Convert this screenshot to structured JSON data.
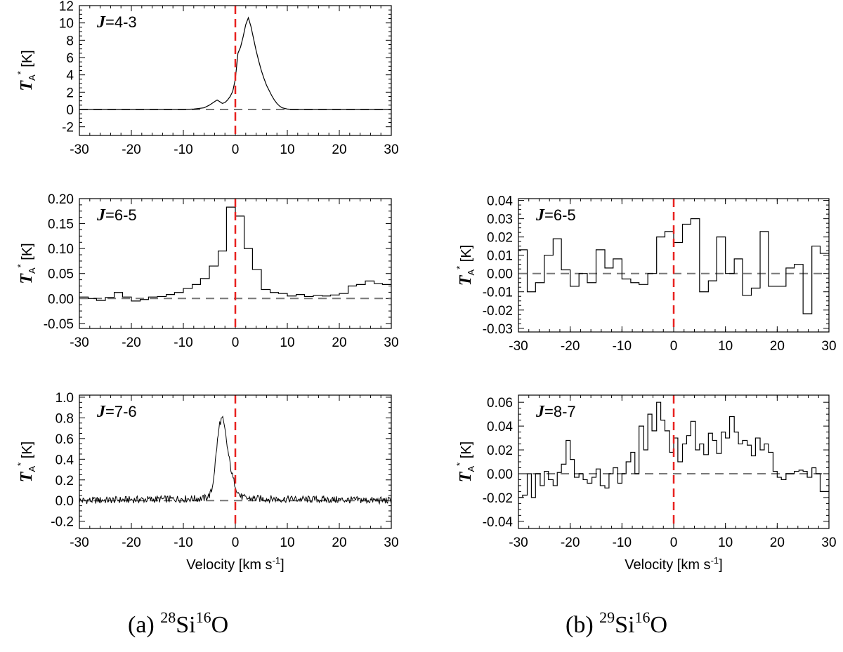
{
  "chart_data": [
    {
      "type": "line",
      "id": "a1",
      "transition_prefix": "J",
      "transition": "=4-3",
      "ylabel_main": "T",
      "ylabel_sub": "A",
      "ylabel_sup": "*",
      "ylabel_unit": "[K]",
      "xlabel": "",
      "xlim": [
        -30,
        30
      ],
      "ylim": [
        -3,
        12
      ],
      "x_ticks": [
        -30,
        -20,
        -10,
        0,
        10,
        20,
        30
      ],
      "x_tick_labels": [
        "-30",
        "-20",
        "-10",
        "0",
        "10",
        "20",
        "30"
      ],
      "y_ticks": [
        -2,
        0,
        2,
        4,
        6,
        8,
        10,
        12
      ],
      "y_tick_labels": [
        "-2",
        "0",
        "2",
        "4",
        "6",
        "8",
        "10",
        "12"
      ],
      "x": [
        -30,
        -10,
        -8,
        -6,
        -5,
        -4,
        -3.5,
        -3,
        -2.5,
        -2,
        -1.5,
        -1,
        -0.5,
        0,
        0.5,
        1,
        1.5,
        2,
        2.5,
        3,
        3.5,
        4,
        4.5,
        5,
        5.5,
        6,
        6.5,
        7,
        7.5,
        8,
        8.5,
        9,
        10,
        11,
        12,
        30
      ],
      "y": [
        0,
        0,
        0.05,
        0.2,
        0.5,
        0.9,
        1.1,
        0.9,
        0.7,
        0.8,
        1.1,
        1.5,
        2.1,
        3.5,
        6.5,
        7.2,
        8.4,
        9.8,
        10.6,
        9.6,
        8.2,
        6.8,
        5.6,
        4.5,
        3.6,
        2.8,
        2.2,
        1.6,
        1.1,
        0.7,
        0.4,
        0.2,
        0.05,
        0,
        0,
        0
      ]
    },
    {
      "type": "line",
      "id": "a2",
      "transition_prefix": "J",
      "transition": "=6-5",
      "ylabel_main": "T",
      "ylabel_sub": "A",
      "ylabel_sup": "*",
      "ylabel_unit": "[K]",
      "xlabel": "",
      "xlim": [
        -30,
        30
      ],
      "ylim": [
        -0.06,
        0.2
      ],
      "x_ticks": [
        -30,
        -20,
        -10,
        0,
        10,
        20,
        30
      ],
      "x_tick_labels": [
        "-30",
        "-20",
        "-10",
        "0",
        "10",
        "20",
        "30"
      ],
      "y_ticks": [
        -0.05,
        0,
        0.05,
        0.1,
        0.15,
        0.2
      ],
      "y_tick_labels": [
        "-0.05",
        "0.00",
        "0.05",
        "0.10",
        "0.15",
        "0.20"
      ],
      "x": [
        -30,
        -28.3,
        -26.7,
        -25,
        -23.3,
        -21.7,
        -20,
        -18.3,
        -16.7,
        -15,
        -13.3,
        -11.7,
        -10,
        -8.3,
        -6.7,
        -5,
        -3.3,
        -1.7,
        0,
        1.7,
        3.3,
        5,
        6.7,
        8.3,
        10,
        11.7,
        13.3,
        15,
        16.7,
        18.3,
        20,
        21.7,
        23.3,
        25,
        26.7,
        28.3
      ],
      "y": [
        0.003,
        0.0,
        -0.004,
        0.002,
        0.012,
        0.003,
        -0.005,
        -0.002,
        0.003,
        0.004,
        0.008,
        0.012,
        0.02,
        0.028,
        0.04,
        0.065,
        0.095,
        0.183,
        0.165,
        0.1,
        0.058,
        0.018,
        0.012,
        0.01,
        0.005,
        0.008,
        0.004,
        0.006,
        0.005,
        0.007,
        0.01,
        0.025,
        0.028,
        0.035,
        0.03,
        0.028
      ]
    },
    {
      "type": "line",
      "id": "a3",
      "transition_prefix": "J",
      "transition": "=7-6",
      "ylabel_main": "T",
      "ylabel_sub": "A",
      "ylabel_sup": "*",
      "ylabel_unit": "[K]",
      "xlabel": "Velocity [km s-1]",
      "xlabel_main": "Velocity [km s",
      "xlabel_sup": "-1",
      "xlabel_end": "]",
      "xlim": [
        -30,
        30
      ],
      "ylim": [
        -0.27,
        1.02
      ],
      "x_ticks": [
        -30,
        -20,
        -10,
        0,
        10,
        20,
        30
      ],
      "x_tick_labels": [
        "-30",
        "-20",
        "-10",
        "0",
        "10",
        "20",
        "30"
      ],
      "y_ticks": [
        -0.2,
        0,
        0.2,
        0.4,
        0.6,
        0.8,
        1.0
      ],
      "y_tick_labels": [
        "-0.2",
        "0.0",
        "0.2",
        "0.4",
        "0.6",
        "0.8",
        "1.0"
      ],
      "x": [
        -30,
        -6,
        -5,
        -4.5,
        -4,
        -3.5,
        -3,
        -2.5,
        -2,
        -1.5,
        -1,
        -0.5,
        0,
        0.5,
        1,
        2,
        30
      ],
      "y": [
        0.0,
        0.02,
        0.05,
        0.1,
        0.3,
        0.55,
        0.75,
        0.8,
        0.68,
        0.5,
        0.35,
        0.22,
        0.15,
        0.08,
        0.04,
        0.02,
        0.0
      ],
      "noise_amplitude": 0.035
    },
    {
      "type": "line",
      "id": "b1",
      "transition_prefix": "J",
      "transition": "=6-5",
      "ylabel_main": "T",
      "ylabel_sub": "A",
      "ylabel_sup": "*",
      "ylabel_unit": "[K]",
      "xlabel": "",
      "xlim": [
        -30,
        30
      ],
      "ylim": [
        -0.032,
        0.041
      ],
      "x_ticks": [
        -30,
        -20,
        -10,
        0,
        10,
        20,
        30
      ],
      "x_tick_labels": [
        "-30",
        "-20",
        "-10",
        "0",
        "10",
        "20",
        "30"
      ],
      "y_ticks": [
        -0.03,
        -0.02,
        -0.01,
        0,
        0.01,
        0.02,
        0.03,
        0.04
      ],
      "y_tick_labels": [
        "-0.03",
        "-0.02",
        "-0.01",
        "0.00",
        "0.01",
        "0.02",
        "0.03",
        "0.04"
      ],
      "x": [
        -30,
        -28.3,
        -26.7,
        -25,
        -23.3,
        -21.7,
        -20,
        -18.3,
        -16.7,
        -15,
        -13.3,
        -11.7,
        -10,
        -8.3,
        -6.7,
        -5,
        -3.3,
        -1.7,
        0,
        1.7,
        3.3,
        5,
        6.7,
        8.3,
        10,
        11.7,
        13.3,
        15,
        16.7,
        18.3,
        20,
        21.7,
        23.3,
        25,
        26.7,
        28.3
      ],
      "y": [
        0.013,
        -0.01,
        -0.005,
        0.01,
        0.019,
        0.002,
        -0.007,
        0.0,
        -0.005,
        0.013,
        0.003,
        0.008,
        -0.003,
        -0.005,
        -0.006,
        0.0,
        0.02,
        0.023,
        0.017,
        0.027,
        0.03,
        -0.01,
        -0.004,
        0.02,
        0.0,
        0.008,
        -0.012,
        -0.008,
        0.023,
        -0.007,
        -0.007,
        0.003,
        0.005,
        -0.022,
        0.015,
        0.011
      ]
    },
    {
      "type": "line",
      "id": "b2",
      "transition_prefix": "J",
      "transition": "=8-7",
      "ylabel_main": "T",
      "ylabel_sub": "A",
      "ylabel_sup": "*",
      "ylabel_unit": "[K]",
      "xlabel": "Velocity [km s-1]",
      "xlabel_main": "Velocity [km s",
      "xlabel_sup": "-1",
      "xlabel_end": "]",
      "xlim": [
        -30,
        30
      ],
      "ylim": [
        -0.046,
        0.066
      ],
      "x_ticks": [
        -30,
        -20,
        -10,
        0,
        10,
        20,
        30
      ],
      "x_tick_labels": [
        "-30",
        "-20",
        "-10",
        "0",
        "10",
        "20",
        "30"
      ],
      "y_ticks": [
        -0.04,
        -0.02,
        0,
        0.02,
        0.04,
        0.06
      ],
      "y_tick_labels": [
        "-0.04",
        "-0.02",
        "0.00",
        "0.02",
        "0.04",
        "0.06"
      ],
      "x": [
        -30,
        -29.2,
        -28.3,
        -27.5,
        -26.7,
        -25.8,
        -25,
        -24.2,
        -23.3,
        -22.5,
        -21.7,
        -20.8,
        -20,
        -19.2,
        -18.3,
        -17.5,
        -16.7,
        -15.8,
        -15,
        -14.2,
        -13.3,
        -12.5,
        -11.7,
        -10.8,
        -10,
        -9.2,
        -8.3,
        -7.5,
        -6.7,
        -5.8,
        -5,
        -4.2,
        -3.3,
        -2.5,
        -1.7,
        -0.8,
        0,
        0.8,
        1.7,
        2.5,
        3.3,
        4.2,
        5,
        5.8,
        6.7,
        7.5,
        8.3,
        9.2,
        10,
        10.8,
        11.7,
        12.5,
        13.3,
        14.2,
        15,
        15.8,
        16.7,
        17.5,
        18.3,
        19.2,
        20,
        20.8,
        21.7,
        22.5,
        23.3,
        24.2,
        25,
        25.8,
        26.7,
        27.5,
        28.3,
        29.2
      ],
      "y": [
        -0.02,
        -0.018,
        0.0,
        -0.02,
        0.0,
        -0.01,
        0.002,
        -0.005,
        -0.01,
        0.001,
        0.008,
        0.028,
        0.012,
        -0.003,
        0.0,
        -0.005,
        -0.008,
        -0.003,
        0.004,
        -0.01,
        -0.012,
        0.0,
        0.005,
        -0.008,
        0.0,
        0.01,
        0.018,
        0.0,
        0.04,
        0.02,
        0.05,
        0.036,
        0.06,
        0.045,
        0.036,
        0.018,
        0.03,
        0.01,
        0.025,
        0.032,
        0.044,
        0.02,
        0.025,
        0.016,
        0.034,
        0.028,
        0.017,
        0.035,
        0.03,
        0.048,
        0.035,
        0.025,
        0.028,
        0.024,
        0.015,
        0.03,
        0.02,
        0.025,
        0.018,
        0.002,
        -0.003,
        -0.005,
        0.0,
        0.0,
        0.002,
        0.003,
        0.002,
        -0.003,
        0.005,
        0.0,
        -0.015,
        -0.015
      ]
    }
  ],
  "captions": {
    "a": {
      "prefix": "(a)  ",
      "iso1": "28",
      "el1": "Si",
      "iso2": "16",
      "el2": "O"
    },
    "b": {
      "prefix": "(b)  ",
      "iso1": "29",
      "el1": "Si",
      "iso2": "16",
      "el2": "O"
    }
  },
  "colors": {
    "trace": "#000000",
    "zero_line": "#777777",
    "vline": "#e8211f",
    "axes": "#000000"
  }
}
